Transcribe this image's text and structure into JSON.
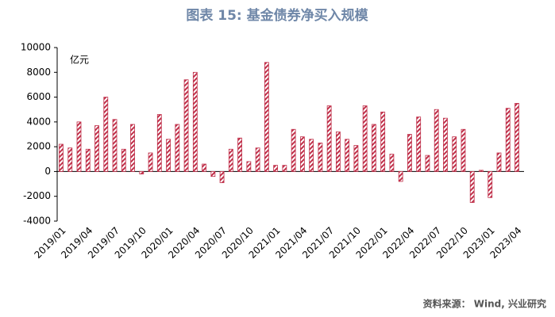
{
  "chart_data": {
    "type": "bar",
    "title": "图表 15: 基金债券净买入规模",
    "y_label": "亿元",
    "source": "资料来源： Wind, 兴业研究",
    "categories": [
      "2019/01",
      null,
      null,
      "2019/04",
      null,
      null,
      "2019/07",
      null,
      null,
      "2019/10",
      null,
      null,
      "2020/01",
      null,
      null,
      "2020/04",
      null,
      null,
      "2020/07",
      null,
      null,
      "2020/10",
      null,
      null,
      "2021/01",
      null,
      null,
      "2021/04",
      null,
      null,
      "2021/07",
      null,
      null,
      "2021/10",
      null,
      null,
      "2022/01",
      null,
      null,
      "2022/04",
      null,
      null,
      "2022/07",
      null,
      null,
      "2022/10",
      null,
      null,
      "2023/01",
      null,
      null,
      "2023/04"
    ],
    "values": [
      2200,
      1900,
      4000,
      1800,
      3700,
      6000,
      4200,
      1800,
      3800,
      -200,
      1500,
      4600,
      2600,
      3800,
      7400,
      8000,
      600,
      -400,
      -900,
      1800,
      2700,
      800,
      1900,
      8800,
      500,
      500,
      3400,
      2800,
      2600,
      2300,
      5300,
      3200,
      2600,
      2100,
      5300,
      3800,
      4800,
      1400,
      -800,
      3000,
      4400,
      1300,
      5000,
      4300,
      2800,
      3400,
      -2500,
      100,
      -2100,
      1500,
      5100,
      5500
    ],
    "color": "#c0304a",
    "ylim": [
      -4000,
      10000
    ],
    "yticks": [
      -4000,
      -2000,
      0,
      2000,
      4000,
      6000,
      8000,
      10000
    ]
  }
}
